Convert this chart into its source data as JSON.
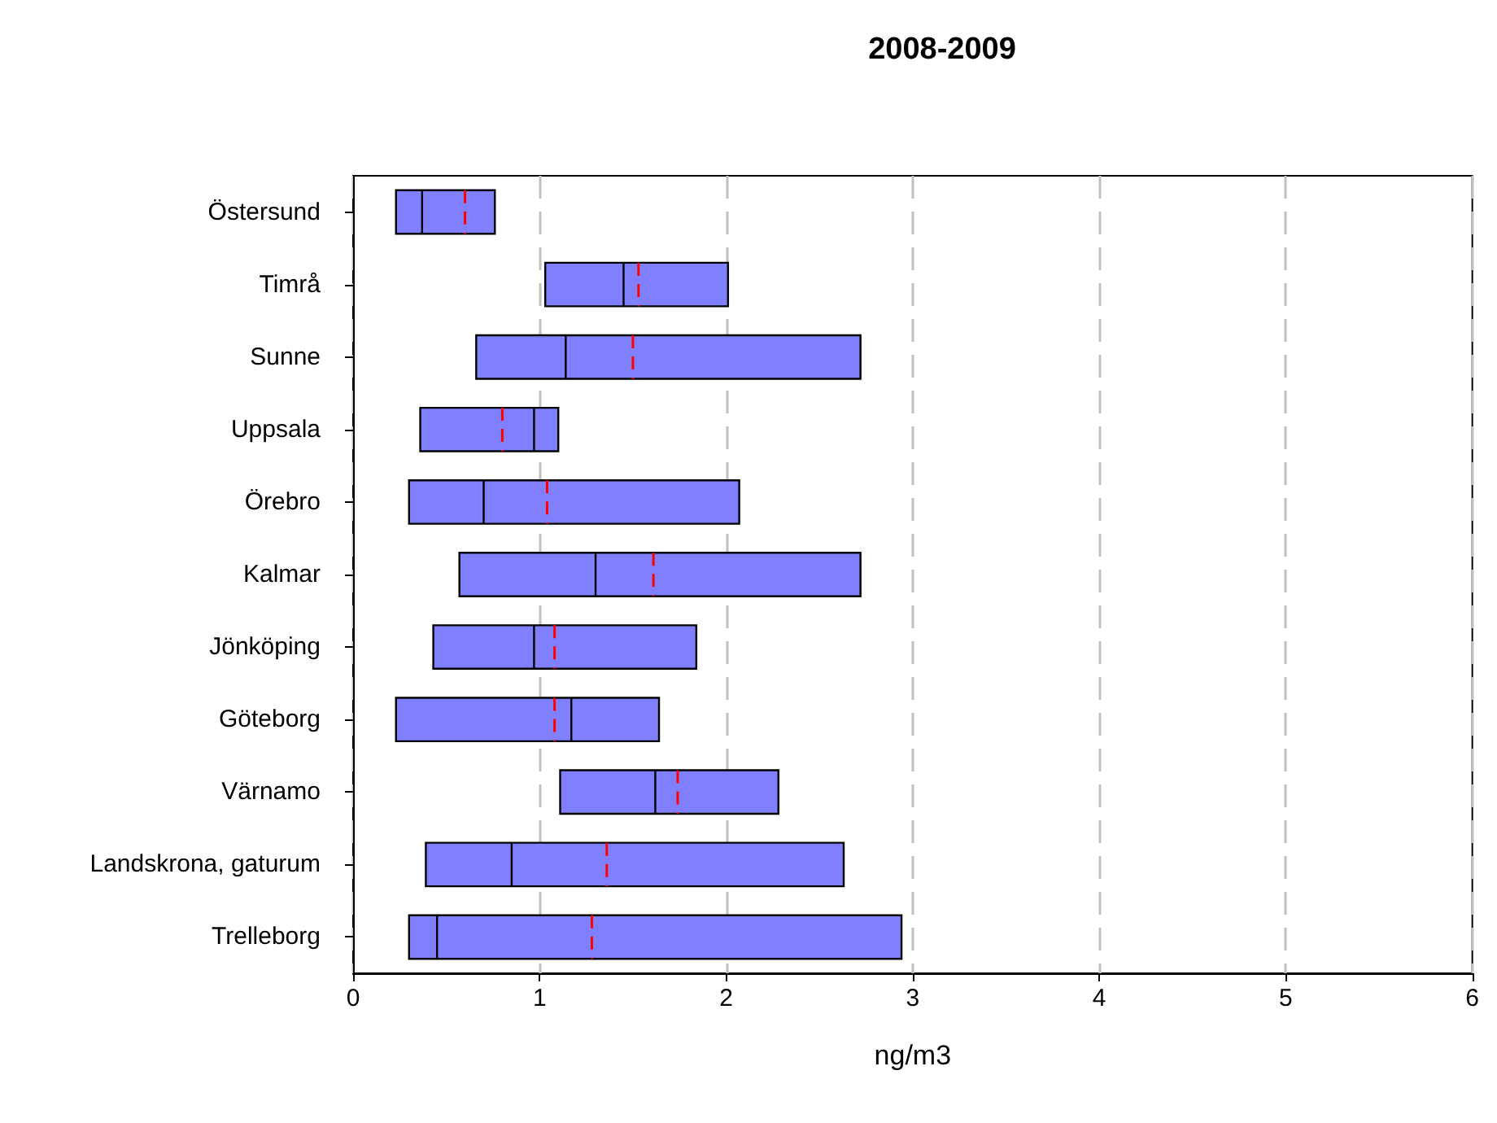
{
  "chart_data": {
    "type": "box",
    "title": "2008-2009",
    "xlabel": "ng/m3",
    "orientation": "horizontal",
    "categories": [
      "Östersund",
      "Timrå",
      "Sunne",
      "Uppsala",
      "Örebro",
      "Kalmar",
      "Jönköping",
      "Göteborg",
      "Värnamo",
      "Landskrona, gaturum",
      "Trelleborg"
    ],
    "series": [
      {
        "color": "#8080ff",
        "boxes": [
          {
            "low": 0.23,
            "q1": 0.23,
            "median": 0.37,
            "q3": 0.76,
            "high": 0.76,
            "mean": 0.6
          },
          {
            "low": 1.03,
            "q1": 1.03,
            "median": 1.45,
            "q3": 2.01,
            "high": 2.01,
            "mean": 1.53
          },
          {
            "low": 0.66,
            "q1": 0.66,
            "median": 1.14,
            "q3": 2.72,
            "high": 2.72,
            "mean": 1.5
          },
          {
            "low": 0.36,
            "q1": 0.36,
            "median": 0.97,
            "q3": 1.1,
            "high": 1.1,
            "mean": 0.8
          },
          {
            "low": 0.3,
            "q1": 0.3,
            "median": 0.7,
            "q3": 2.07,
            "high": 2.07,
            "mean": 1.04
          },
          {
            "low": 0.57,
            "q1": 0.57,
            "median": 1.3,
            "q3": 2.72,
            "high": 2.72,
            "mean": 1.61
          },
          {
            "low": 0.43,
            "q1": 0.43,
            "median": 0.97,
            "q3": 1.84,
            "high": 1.84,
            "mean": 1.08
          },
          {
            "low": 0.23,
            "q1": 0.23,
            "median": 1.17,
            "q3": 1.64,
            "high": 1.64,
            "mean": 1.08
          },
          {
            "low": 1.11,
            "q1": 1.11,
            "median": 1.62,
            "q3": 2.28,
            "high": 2.28,
            "mean": 1.74
          },
          {
            "low": 0.39,
            "q1": 0.39,
            "median": 0.85,
            "q3": 2.63,
            "high": 2.63,
            "mean": 1.36
          },
          {
            "low": 0.3,
            "q1": 0.3,
            "median": 0.45,
            "q3": 2.94,
            "high": 2.94,
            "mean": 1.28
          }
        ]
      }
    ],
    "xlim": [
      0,
      6
    ],
    "xticks": [
      0,
      1,
      2,
      3,
      4,
      5,
      6
    ],
    "grid": "x"
  }
}
